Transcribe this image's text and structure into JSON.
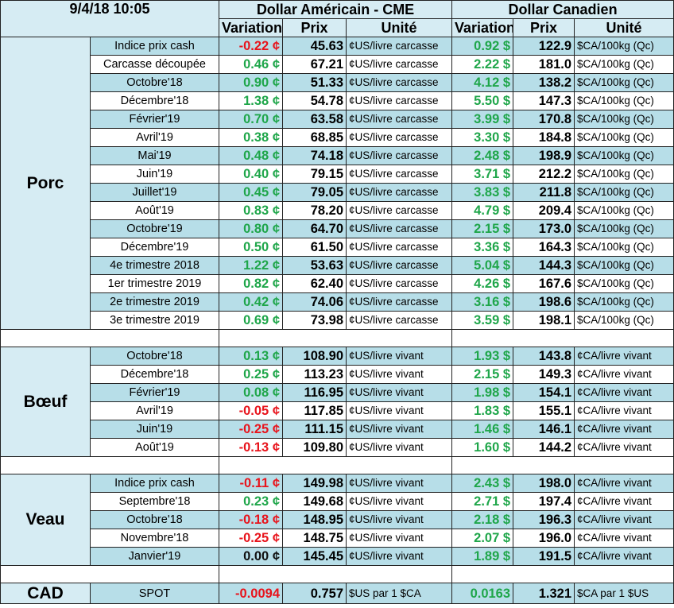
{
  "header": {
    "timestamp": "9/4/18 10:05",
    "us_title": "Dollar Américain - CME",
    "ca_title": "Dollar Canadien",
    "us_columns": [
      "Variation",
      "Prix",
      "Unité"
    ],
    "ca_columns": [
      "Variation",
      "Prix",
      "Unité"
    ]
  },
  "sections": [
    {
      "name": "Porc",
      "rows": [
        [
          "Indice prix cash",
          "-0.22 ¢",
          "45.63",
          "¢US/livre carcasse",
          "0.92 $",
          "122.9",
          "$CA/100kg (Qc)"
        ],
        [
          "Carcasse découpée",
          "0.46 ¢",
          "67.21",
          "¢US/livre carcasse",
          "2.22 $",
          "181.0",
          "$CA/100kg (Qc)"
        ],
        [
          "Octobre'18",
          "0.90 ¢",
          "51.33",
          "¢US/livre carcasse",
          "4.12 $",
          "138.2",
          "$CA/100kg (Qc)"
        ],
        [
          "Décembre'18",
          "1.38 ¢",
          "54.78",
          "¢US/livre carcasse",
          "5.50 $",
          "147.3",
          "$CA/100kg (Qc)"
        ],
        [
          "Février'19",
          "0.70 ¢",
          "63.58",
          "¢US/livre carcasse",
          "3.99 $",
          "170.8",
          "$CA/100kg (Qc)"
        ],
        [
          "Avril'19",
          "0.38 ¢",
          "68.85",
          "¢US/livre carcasse",
          "3.30 $",
          "184.8",
          "$CA/100kg (Qc)"
        ],
        [
          "Mai'19",
          "0.48 ¢",
          "74.18",
          "¢US/livre carcasse",
          "2.48 $",
          "198.9",
          "$CA/100kg (Qc)"
        ],
        [
          "Juin'19",
          "0.40 ¢",
          "79.15",
          "¢US/livre carcasse",
          "3.71 $",
          "212.2",
          "$CA/100kg (Qc)"
        ],
        [
          "Juillet'19",
          "0.45 ¢",
          "79.05",
          "¢US/livre carcasse",
          "3.83 $",
          "211.8",
          "$CA/100kg (Qc)"
        ],
        [
          "Août'19",
          "0.83 ¢",
          "78.20",
          "¢US/livre carcasse",
          "4.79 $",
          "209.4",
          "$CA/100kg (Qc)"
        ],
        [
          "Octobre'19",
          "0.80 ¢",
          "64.70",
          "¢US/livre carcasse",
          "2.15 $",
          "173.0",
          "$CA/100kg (Qc)"
        ],
        [
          "Décembre'19",
          "0.50 ¢",
          "61.50",
          "¢US/livre carcasse",
          "3.36 $",
          "164.3",
          "$CA/100kg (Qc)"
        ],
        [
          "4e trimestre 2018",
          "1.22 ¢",
          "53.63",
          "¢US/livre carcasse",
          "5.04 $",
          "144.3",
          "$CA/100kg (Qc)"
        ],
        [
          "1er trimestre 2019",
          "0.82 ¢",
          "62.40",
          "¢US/livre carcasse",
          "4.26 $",
          "167.6",
          "$CA/100kg (Qc)"
        ],
        [
          "2e trimestre 2019",
          "0.42 ¢",
          "74.06",
          "¢US/livre carcasse",
          "3.16 $",
          "198.6",
          "$CA/100kg (Qc)"
        ],
        [
          "3e trimestre 2019",
          "0.69 ¢",
          "73.98",
          "¢US/livre carcasse",
          "3.59 $",
          "198.1",
          "$CA/100kg (Qc)"
        ]
      ]
    },
    {
      "name": "Bœuf",
      "rows": [
        [
          "Octobre'18",
          "0.13 ¢",
          "108.90",
          "¢US/livre vivant",
          "1.93 $",
          "143.8",
          "¢CA/livre vivant"
        ],
        [
          "Décembre'18",
          "0.25 ¢",
          "113.23",
          "¢US/livre vivant",
          "2.15 $",
          "149.3",
          "¢CA/livre vivant"
        ],
        [
          "Février'19",
          "0.08 ¢",
          "116.95",
          "¢US/livre vivant",
          "1.98 $",
          "154.1",
          "¢CA/livre vivant"
        ],
        [
          "Avril'19",
          "-0.05 ¢",
          "117.85",
          "¢US/livre vivant",
          "1.83 $",
          "155.1",
          "¢CA/livre vivant"
        ],
        [
          "Juin'19",
          "-0.25 ¢",
          "111.15",
          "¢US/livre vivant",
          "1.46 $",
          "146.1",
          "¢CA/livre vivant"
        ],
        [
          "Août'19",
          "-0.13 ¢",
          "109.80",
          "¢US/livre vivant",
          "1.60 $",
          "144.2",
          "¢CA/livre vivant"
        ]
      ]
    },
    {
      "name": "Veau",
      "rows": [
        [
          "Indice prix cash",
          "-0.11 ¢",
          "149.98",
          "¢US/livre vivant",
          "2.43 $",
          "198.0",
          "¢CA/livre vivant"
        ],
        [
          "Septembre'18",
          "0.23 ¢",
          "149.68",
          "¢US/livre vivant",
          "2.71 $",
          "197.4",
          "¢CA/livre vivant"
        ],
        [
          "Octobre'18",
          "-0.18 ¢",
          "148.95",
          "¢US/livre vivant",
          "2.18 $",
          "196.3",
          "¢CA/livre vivant"
        ],
        [
          "Novembre'18",
          "-0.25 ¢",
          "148.75",
          "¢US/livre vivant",
          "2.07 $",
          "196.0",
          "¢CA/livre vivant"
        ],
        [
          "Janvier'19",
          "0.00 ¢",
          "145.45",
          "¢US/livre vivant",
          "1.89 $",
          "191.5",
          "¢CA/livre vivant"
        ]
      ]
    },
    {
      "name": "CAD",
      "rows": [
        [
          "SPOT",
          "-0.0094",
          "0.757",
          "$US par 1 $CA",
          "0.0163",
          "1.321",
          "$CA par 1 $US"
        ]
      ]
    }
  ]
}
